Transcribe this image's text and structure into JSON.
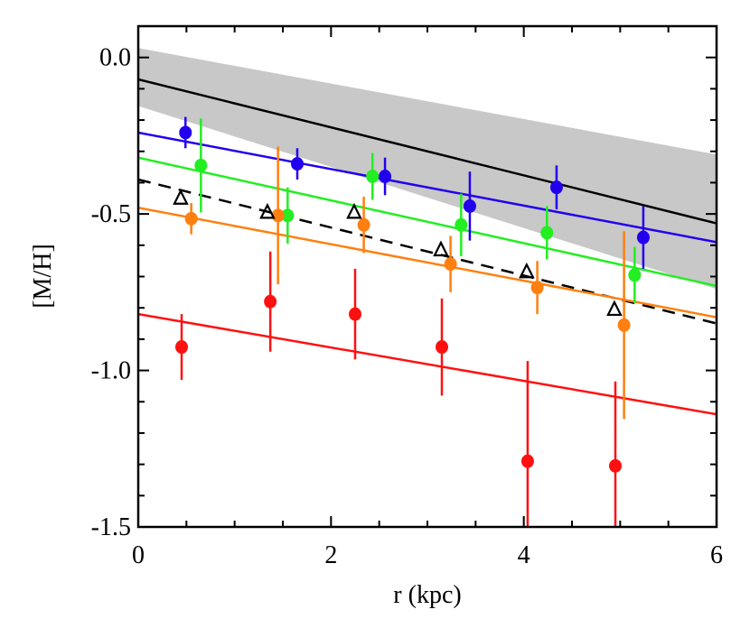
{
  "chart_data": {
    "type": "scatter",
    "title": "",
    "xlabel": "r (kpc)",
    "ylabel": "[M/H]",
    "xlim": [
      0,
      6
    ],
    "ylim": [
      -1.5,
      0.1
    ],
    "xticks": [
      0,
      2,
      4,
      6
    ],
    "xtick_labels": [
      "0",
      "2",
      "4",
      "6"
    ],
    "yticks": [
      0.0,
      -0.5,
      -1.0,
      -1.5
    ],
    "ytick_labels": [
      "0.0",
      "-0.5",
      "-1.0",
      "-1.5"
    ],
    "grid": false,
    "band": {
      "color": "#c8c8c8",
      "x": [
        0,
        6
      ],
      "upper": [
        0.03,
        -0.31
      ],
      "lower": [
        -0.155,
        -0.74
      ]
    },
    "lines": [
      {
        "color": "#000000",
        "style": "solid",
        "x": [
          0,
          6
        ],
        "y": [
          -0.07,
          -0.53
        ]
      },
      {
        "color": "#2200ee",
        "style": "solid",
        "x": [
          0,
          6
        ],
        "y": [
          -0.24,
          -0.59
        ]
      },
      {
        "color": "#22ee22",
        "style": "solid",
        "x": [
          0,
          6
        ],
        "y": [
          -0.32,
          -0.73
        ]
      },
      {
        "color": "#000000",
        "style": "dashed",
        "x": [
          0,
          6
        ],
        "y": [
          -0.39,
          -0.85
        ]
      },
      {
        "color": "#ff8010",
        "style": "solid",
        "x": [
          0,
          6
        ],
        "y": [
          -0.48,
          -0.83
        ]
      },
      {
        "color": "#ff1010",
        "style": "solid",
        "x": [
          0,
          6
        ],
        "y": [
          -0.82,
          -1.14
        ]
      }
    ],
    "series": [
      {
        "color": "#2200ee",
        "marker": "circle",
        "x": [
          0.49,
          1.65,
          2.56,
          3.44,
          4.34,
          5.24
        ],
        "y": [
          -0.24,
          -0.34,
          -0.38,
          -0.475,
          -0.415,
          -0.575
        ],
        "yerr": [
          0.05,
          0.05,
          0.06,
          0.11,
          0.07,
          0.1
        ]
      },
      {
        "color": "#22ee22",
        "marker": "circle",
        "x": [
          0.65,
          1.55,
          2.43,
          3.35,
          4.24,
          5.15
        ],
        "y": [
          -0.345,
          -0.505,
          -0.38,
          -0.535,
          -0.56,
          -0.695
        ],
        "yerr": [
          0.15,
          0.09,
          0.075,
          0.1,
          0.085,
          0.09
        ]
      },
      {
        "color": "#ff8010",
        "marker": "circle",
        "x": [
          0.55,
          1.45,
          2.34,
          3.24,
          4.14,
          5.04
        ],
        "y": [
          -0.515,
          -0.505,
          -0.535,
          -0.66,
          -0.735,
          -0.855
        ],
        "yerr": [
          0.05,
          0.22,
          0.09,
          0.09,
          0.085,
          0.3
        ]
      },
      {
        "color": "#ff1010",
        "marker": "circle",
        "x": [
          0.45,
          1.37,
          2.25,
          3.15,
          4.04,
          4.95
        ],
        "y": [
          -0.925,
          -0.78,
          -0.82,
          -0.925,
          -1.29,
          -1.305
        ],
        "yerr": [
          0.105,
          0.16,
          0.145,
          0.155,
          0.32,
          0.27
        ]
      },
      {
        "color": "#000000",
        "marker": "open-triangle",
        "x": [
          0.44,
          1.34,
          2.24,
          3.14,
          4.03,
          4.94
        ],
        "y": [
          -0.45,
          -0.495,
          -0.495,
          -0.615,
          -0.685,
          -0.805
        ]
      }
    ]
  }
}
